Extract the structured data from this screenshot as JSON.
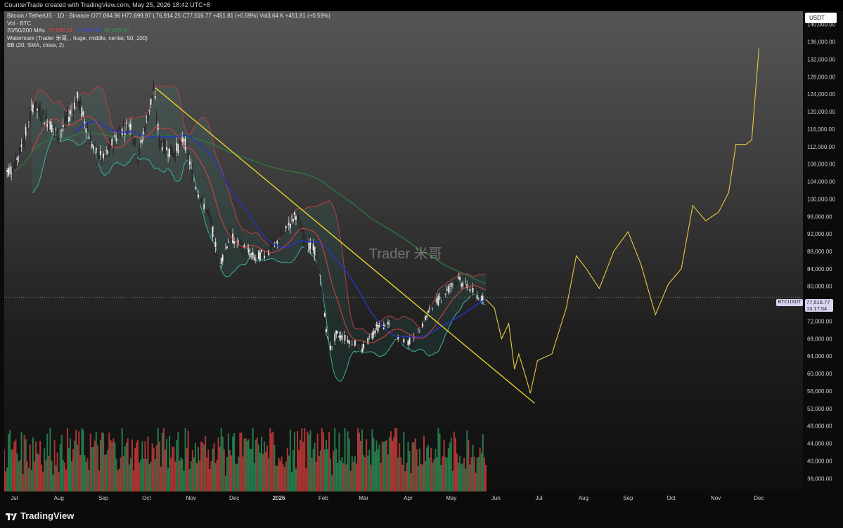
{
  "header": {
    "caption": "CounterTrade created with TradingView.com, May 25, 2026 18:42 UTC+8"
  },
  "legend": {
    "line1": "Bitcoin / TetherUS · 1D · Binance  O77,064.96  H77,699.97  L76,914.25  C77,516.77  +451.81 (+0.59%)  Vol3.64 K  +451.81 (+0.59%)",
    "line2_label": "Vol · BTC",
    "line3_label": "20/50/200 MAs",
    "ma20": "77,685.31",
    "ma50": "76,953.46",
    "ma200": "80,439.62",
    "line4": "Watermark (Trader 米哥, , huge, middle, center, 50, 100)",
    "line5_label": "BB (20, SMA, close, 2)"
  },
  "watermark": "Trader 米哥",
  "currency": "USDT",
  "price_tag": {
    "symbol": "BTCUSDT",
    "price": "77,516.77",
    "countdown": "13:17:54"
  },
  "brand": "TradingView",
  "colors": {
    "up": "#e9e9e9",
    "down": "#303030",
    "ma20": "#e0413f",
    "ma50": "#2533c9",
    "ma200": "#2e7d3e",
    "bb": "#39b2a0",
    "trend": "#f2df2a",
    "projection": "#e8c840"
  },
  "chart_data": {
    "type": "candlestick",
    "title": "",
    "ylim": [
      33000,
      143000
    ],
    "y_ticks": [
      36000,
      40000,
      44000,
      48000,
      52000,
      56000,
      60000,
      64000,
      68000,
      72000,
      76000,
      80000,
      84000,
      88000,
      92000,
      96000,
      100000,
      104000,
      108000,
      112000,
      116000,
      120000,
      124000,
      128000,
      132000,
      136000,
      140000
    ],
    "y_tick_labels": [
      "36,000.00",
      "40,000.00",
      "44,000.00",
      "48,000.00",
      "52,000.00",
      "56,000.00",
      "60,000.00",
      "64,000.00",
      "68,000.00",
      "72,000.00",
      "76,000.00",
      "80,000.00",
      "84,000.00",
      "88,000.00",
      "92,000.00",
      "96,000.00",
      "100,000.00",
      "104,000.00",
      "108,000.00",
      "112,000.00",
      "116,000.00",
      "120,000.00",
      "124,000.00",
      "128,000.00",
      "132,000.00",
      "136,000.00",
      "140,000.00"
    ],
    "x_labels": [
      {
        "label": "Jul",
        "date": "2025-07-01"
      },
      {
        "label": "Aug",
        "date": "2025-08-01"
      },
      {
        "label": "Sep",
        "date": "2025-09-01"
      },
      {
        "label": "Oct",
        "date": "2025-10-01"
      },
      {
        "label": "Nov",
        "date": "2025-11-01"
      },
      {
        "label": "Dec",
        "date": "2025-12-01"
      },
      {
        "label": "2026",
        "date": "2026-01-01"
      },
      {
        "label": "Feb",
        "date": "2026-02-01"
      },
      {
        "label": "Mar",
        "date": "2026-03-01"
      },
      {
        "label": "Apr",
        "date": "2026-04-01"
      },
      {
        "label": "May",
        "date": "2026-05-01"
      },
      {
        "label": "Jun",
        "date": "2026-06-01"
      },
      {
        "label": "Jul",
        "date": "2026-07-01"
      },
      {
        "label": "Aug",
        "date": "2026-08-01"
      },
      {
        "label": "Sep",
        "date": "2026-09-01"
      },
      {
        "label": "Oct",
        "date": "2026-10-01"
      },
      {
        "label": "Nov",
        "date": "2026-11-01"
      },
      {
        "label": "Dec",
        "date": "2026-12-01"
      }
    ],
    "x_range": [
      "2025-06-24",
      "2026-12-15"
    ],
    "last_price": 77516.77,
    "price_key": [
      {
        "date": "2025-06-24",
        "close": 106000
      },
      {
        "date": "2025-07-01",
        "close": 107500
      },
      {
        "date": "2025-07-10",
        "close": 116000
      },
      {
        "date": "2025-07-14",
        "close": 121500
      },
      {
        "date": "2025-07-25",
        "close": 117500
      },
      {
        "date": "2025-08-01",
        "close": 114500
      },
      {
        "date": "2025-08-14",
        "close": 123000
      },
      {
        "date": "2025-08-25",
        "close": 111500
      },
      {
        "date": "2025-09-01",
        "close": 109000
      },
      {
        "date": "2025-09-12",
        "close": 115500
      },
      {
        "date": "2025-09-20",
        "close": 117000
      },
      {
        "date": "2025-09-25",
        "close": 109500
      },
      {
        "date": "2025-10-06",
        "close": 125000
      },
      {
        "date": "2025-10-10",
        "close": 113000
      },
      {
        "date": "2025-10-15",
        "close": 111500
      },
      {
        "date": "2025-10-20",
        "close": 110500
      },
      {
        "date": "2025-10-27",
        "close": 114000
      },
      {
        "date": "2025-11-04",
        "close": 103000
      },
      {
        "date": "2025-11-14",
        "close": 95500
      },
      {
        "date": "2025-11-21",
        "close": 85000
      },
      {
        "date": "2025-11-28",
        "close": 91500
      },
      {
        "date": "2025-12-05",
        "close": 89500
      },
      {
        "date": "2025-12-15",
        "close": 86500
      },
      {
        "date": "2025-12-25",
        "close": 88000
      },
      {
        "date": "2026-01-05",
        "close": 92500
      },
      {
        "date": "2026-01-13",
        "close": 96500
      },
      {
        "date": "2026-01-20",
        "close": 89500
      },
      {
        "date": "2026-01-27",
        "close": 88000
      },
      {
        "date": "2026-01-31",
        "close": 78500
      },
      {
        "date": "2026-02-05",
        "close": 65000
      },
      {
        "date": "2026-02-10",
        "close": 69000
      },
      {
        "date": "2026-02-20",
        "close": 67500
      },
      {
        "date": "2026-02-28",
        "close": 65500
      },
      {
        "date": "2026-03-10",
        "close": 70500
      },
      {
        "date": "2026-03-20",
        "close": 71000
      },
      {
        "date": "2026-03-28",
        "close": 67000
      },
      {
        "date": "2026-04-05",
        "close": 67500
      },
      {
        "date": "2026-04-15",
        "close": 74000
      },
      {
        "date": "2026-04-25",
        "close": 78000
      },
      {
        "date": "2026-05-05",
        "close": 81500
      },
      {
        "date": "2026-05-12",
        "close": 80000
      },
      {
        "date": "2026-05-18",
        "close": 78000
      },
      {
        "date": "2026-05-25",
        "close": 77516.77
      }
    ],
    "series": [
      {
        "name": "",
        "role": "trendline",
        "points": [
          {
            "date": "2025-10-07",
            "y": 125500
          },
          {
            "date": "2026-06-28",
            "y": 53200
          }
        ]
      },
      {
        "name": "",
        "role": "projection",
        "points": [
          {
            "date": "2026-05-25",
            "y": 77000
          },
          {
            "date": "2026-05-31",
            "y": 75000
          },
          {
            "date": "2026-06-05",
            "y": 68000
          },
          {
            "date": "2026-06-10",
            "y": 71500
          },
          {
            "date": "2026-06-14",
            "y": 61000
          },
          {
            "date": "2026-06-17",
            "y": 64500
          },
          {
            "date": "2026-06-22",
            "y": 59000
          },
          {
            "date": "2026-06-25",
            "y": 55500
          },
          {
            "date": "2026-06-30",
            "y": 63000
          },
          {
            "date": "2026-07-10",
            "y": 64500
          },
          {
            "date": "2026-07-20",
            "y": 75000
          },
          {
            "date": "2026-07-27",
            "y": 87000
          },
          {
            "date": "2026-08-03",
            "y": 84000
          },
          {
            "date": "2026-08-12",
            "y": 79500
          },
          {
            "date": "2026-08-22",
            "y": 88000
          },
          {
            "date": "2026-09-01",
            "y": 92500
          },
          {
            "date": "2026-09-10",
            "y": 85000
          },
          {
            "date": "2026-09-20",
            "y": 73500
          },
          {
            "date": "2026-09-29",
            "y": 80500
          },
          {
            "date": "2026-10-08",
            "y": 84000
          },
          {
            "date": "2026-10-16",
            "y": 98500
          },
          {
            "date": "2026-10-25",
            "y": 95000
          },
          {
            "date": "2026-11-03",
            "y": 97000
          },
          {
            "date": "2026-11-10",
            "y": 101500
          },
          {
            "date": "2026-11-15",
            "y": 112500
          },
          {
            "date": "2026-11-22",
            "y": 112500
          },
          {
            "date": "2026-11-26",
            "y": 113500
          },
          {
            "date": "2026-11-29",
            "y": 126000
          },
          {
            "date": "2026-12-01",
            "y": 134500
          }
        ]
      }
    ],
    "volume_note": "Volume histogram at bottom of price pane, red = down day, green = up day",
    "grid": false,
    "legend_position": "top-left"
  }
}
